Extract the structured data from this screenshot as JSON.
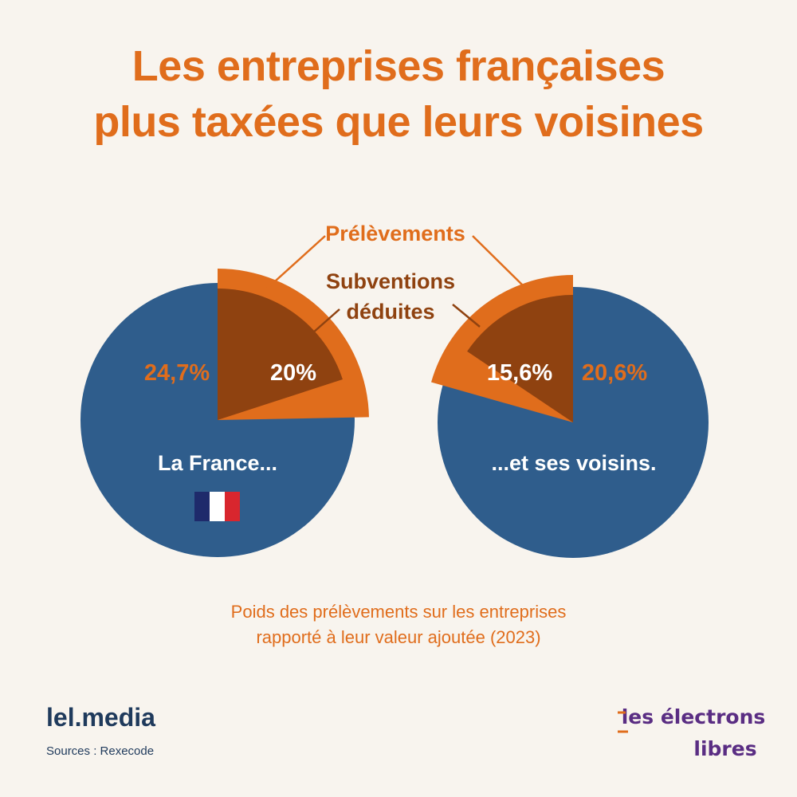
{
  "title": {
    "line1": "Les entreprises françaises",
    "line2": "plus taxées que leurs voisines"
  },
  "subtitle": {
    "line1": "Poids des prélèvements sur les entreprises",
    "line2": "rapporté à leur valeur ajoutée (2023)"
  },
  "footer": {
    "site": "lel.media",
    "source": "Sources : Rexecode"
  },
  "logo": {
    "line1": "les électrons",
    "line2": "libres"
  },
  "colors": {
    "background": "#f8f4ee",
    "blue": "#2f5d8c",
    "orange": "#e06d1c",
    "brown": "#8f4210",
    "navy": "#1f3a5c",
    "purple": "#5a2d83"
  },
  "chart_data": [
    {
      "type": "pie",
      "name": "La France...",
      "flag": "france-flag",
      "prelevements": 24.7,
      "prelevements_label": "24,7%",
      "subventions_deduites": 20,
      "subventions_label": "20%"
    },
    {
      "type": "pie",
      "name": "...et ses voisins.",
      "prelevements": 20.6,
      "prelevements_label": "20,6%",
      "subventions_deduites": 15.6,
      "subventions_label": "15,6%"
    }
  ],
  "annotations": {
    "prelevements": "Prélèvements",
    "subventions_line1": "Subventions",
    "subventions_line2": "déduites"
  }
}
